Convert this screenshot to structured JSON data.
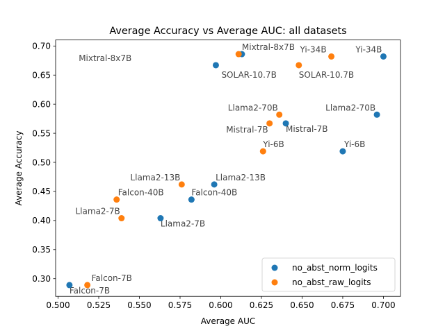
{
  "chart_data": {
    "type": "scatter",
    "title": "Average Accuracy vs Average AUC: all datasets",
    "xlabel": "Average AUC",
    "ylabel": "Average Accuracy",
    "xlim": [
      0.4985,
      0.7105
    ],
    "ylim": [
      0.2696,
      0.7104
    ],
    "xticks": [
      "0.500",
      "0.525",
      "0.550",
      "0.575",
      "0.600",
      "0.625",
      "0.650",
      "0.675",
      "0.700"
    ],
    "yticks": [
      "0.30",
      "0.35",
      "0.40",
      "0.45",
      "0.50",
      "0.55",
      "0.60",
      "0.65",
      "0.70"
    ],
    "grid": false,
    "legend_position": "lower-right",
    "series": [
      {
        "name": "no_abst_norm_logits",
        "color": "#1f77b4",
        "points": [
          {
            "label": "Mixtral-8x7B",
            "x": 0.613,
            "y": 0.686
          },
          {
            "label": "Yi-34B",
            "x": 0.7,
            "y": 0.682
          },
          {
            "label": "SOLAR-10.7B",
            "x": 0.597,
            "y": 0.667
          },
          {
            "label": "Llama2-70B",
            "x": 0.696,
            "y": 0.582
          },
          {
            "label": "Mistral-7B",
            "x": 0.64,
            "y": 0.567
          },
          {
            "label": "Yi-6B",
            "x": 0.675,
            "y": 0.519
          },
          {
            "label": "Llama2-13B",
            "x": 0.596,
            "y": 0.462
          },
          {
            "label": "Falcon-40B",
            "x": 0.582,
            "y": 0.436
          },
          {
            "label": "Llama2-7B",
            "x": 0.563,
            "y": 0.404
          },
          {
            "label": "Falcon-7B",
            "x": 0.507,
            "y": 0.289
          }
        ]
      },
      {
        "name": "no_abst_raw_logits",
        "color": "#ff7f0e",
        "points": [
          {
            "label": "Mixtral-8x7B",
            "x": 0.611,
            "y": 0.686
          },
          {
            "label": "Yi-34B",
            "x": 0.668,
            "y": 0.682
          },
          {
            "label": "SOLAR-10.7B",
            "x": 0.648,
            "y": 0.667
          },
          {
            "label": "Llama2-70B",
            "x": 0.636,
            "y": 0.582
          },
          {
            "label": "Mistral-7B",
            "x": 0.63,
            "y": 0.567
          },
          {
            "label": "Yi-6B",
            "x": 0.626,
            "y": 0.519
          },
          {
            "label": "Llama2-13B",
            "x": 0.576,
            "y": 0.462
          },
          {
            "label": "Falcon-40B",
            "x": 0.536,
            "y": 0.436
          },
          {
            "label": "Llama2-7B",
            "x": 0.539,
            "y": 0.404
          },
          {
            "label": "Falcon-7B",
            "x": 0.518,
            "y": 0.289
          }
        ]
      }
    ]
  }
}
